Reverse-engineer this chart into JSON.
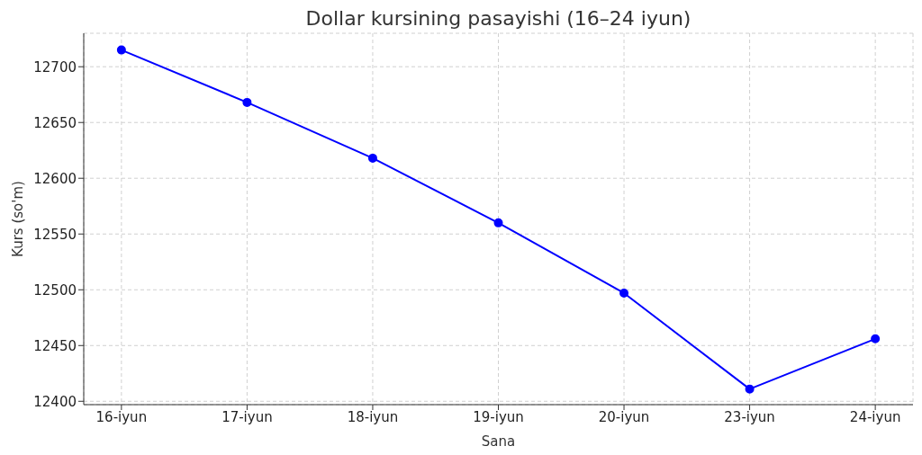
{
  "chart_data": {
    "type": "line",
    "title": "Dollar kursining pasayishi (16–24 iyun)",
    "xlabel": "Sana",
    "ylabel": "Kurs (so'm)",
    "categories": [
      "16-iyun",
      "17-iyun",
      "18-iyun",
      "19-iyun",
      "20-iyun",
      "23-iyun",
      "24-iyun"
    ],
    "series": [
      {
        "color": "#0000ff",
        "values": [
          12715,
          12668,
          12618,
          12560,
          12497,
          12411,
          12456
        ]
      }
    ],
    "ylim": [
      12397,
      12730
    ],
    "yticks": [
      12400,
      12450,
      12500,
      12550,
      12600,
      12650,
      12700
    ],
    "grid": true,
    "marker": "circle",
    "line_style": "solid"
  }
}
